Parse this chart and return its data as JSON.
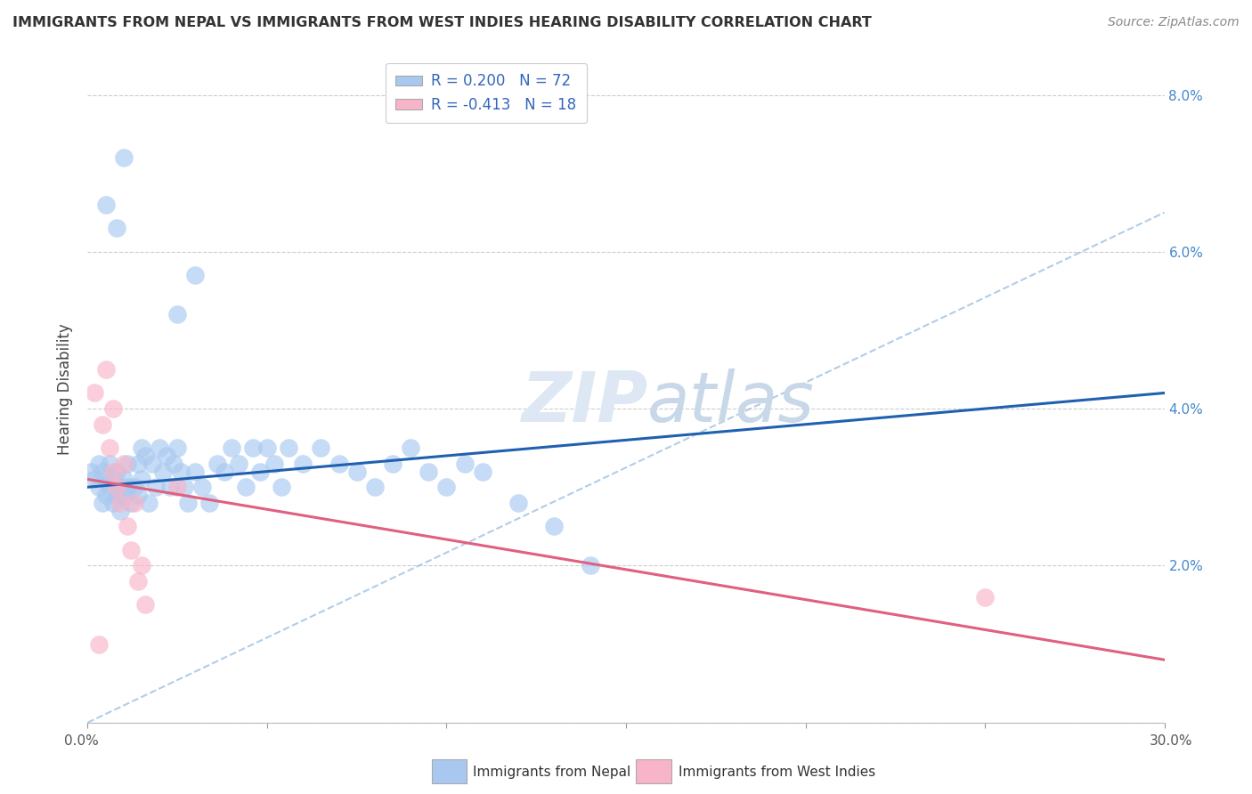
{
  "title": "IMMIGRANTS FROM NEPAL VS IMMIGRANTS FROM WEST INDIES HEARING DISABILITY CORRELATION CHART",
  "source": "Source: ZipAtlas.com",
  "ylabel": "Hearing Disability",
  "xlim": [
    0.0,
    0.3
  ],
  "ylim": [
    0.0,
    0.085
  ],
  "xticks": [
    0.0,
    0.05,
    0.1,
    0.15,
    0.2,
    0.25,
    0.3
  ],
  "xtick_labels": [
    "0.0%",
    "",
    "",
    "",
    "",
    "",
    "30.0%"
  ],
  "yticks": [
    0.0,
    0.02,
    0.04,
    0.06,
    0.08
  ],
  "ytick_labels": [
    "",
    "2.0%",
    "4.0%",
    "6.0%",
    "8.0%"
  ],
  "legend_label1": "Immigrants from Nepal",
  "legend_label2": "Immigrants from West Indies",
  "r1": 0.2,
  "n1": 72,
  "r2": -0.413,
  "n2": 18,
  "color_nepal": "#a8c8f0",
  "color_westindies": "#f8b4c8",
  "line_color_nepal": "#2060b0",
  "line_color_westindies": "#e06080",
  "dashed_line_color": "#90b8e0",
  "watermark_color": "#dde8f4",
  "nepal_points": [
    [
      0.001,
      0.032
    ],
    [
      0.002,
      0.031
    ],
    [
      0.003,
      0.03
    ],
    [
      0.003,
      0.033
    ],
    [
      0.004,
      0.028
    ],
    [
      0.004,
      0.032
    ],
    [
      0.005,
      0.031
    ],
    [
      0.005,
      0.029
    ],
    [
      0.006,
      0.033
    ],
    [
      0.006,
      0.03
    ],
    [
      0.007,
      0.028
    ],
    [
      0.007,
      0.031
    ],
    [
      0.008,
      0.029
    ],
    [
      0.008,
      0.032
    ],
    [
      0.009,
      0.03
    ],
    [
      0.009,
      0.027
    ],
    [
      0.01,
      0.031
    ],
    [
      0.01,
      0.029
    ],
    [
      0.011,
      0.033
    ],
    [
      0.011,
      0.03
    ],
    [
      0.012,
      0.028
    ],
    [
      0.013,
      0.03
    ],
    [
      0.014,
      0.033
    ],
    [
      0.014,
      0.029
    ],
    [
      0.015,
      0.035
    ],
    [
      0.015,
      0.031
    ],
    [
      0.016,
      0.034
    ],
    [
      0.017,
      0.028
    ],
    [
      0.018,
      0.033
    ],
    [
      0.019,
      0.03
    ],
    [
      0.02,
      0.035
    ],
    [
      0.021,
      0.032
    ],
    [
      0.022,
      0.034
    ],
    [
      0.023,
      0.03
    ],
    [
      0.024,
      0.033
    ],
    [
      0.025,
      0.035
    ],
    [
      0.026,
      0.032
    ],
    [
      0.027,
      0.03
    ],
    [
      0.028,
      0.028
    ],
    [
      0.03,
      0.032
    ],
    [
      0.032,
      0.03
    ],
    [
      0.034,
      0.028
    ],
    [
      0.036,
      0.033
    ],
    [
      0.038,
      0.032
    ],
    [
      0.04,
      0.035
    ],
    [
      0.042,
      0.033
    ],
    [
      0.044,
      0.03
    ],
    [
      0.046,
      0.035
    ],
    [
      0.048,
      0.032
    ],
    [
      0.05,
      0.035
    ],
    [
      0.052,
      0.033
    ],
    [
      0.054,
      0.03
    ],
    [
      0.056,
      0.035
    ],
    [
      0.06,
      0.033
    ],
    [
      0.065,
      0.035
    ],
    [
      0.07,
      0.033
    ],
    [
      0.075,
      0.032
    ],
    [
      0.08,
      0.03
    ],
    [
      0.085,
      0.033
    ],
    [
      0.09,
      0.035
    ],
    [
      0.095,
      0.032
    ],
    [
      0.1,
      0.03
    ],
    [
      0.105,
      0.033
    ],
    [
      0.11,
      0.032
    ],
    [
      0.12,
      0.028
    ],
    [
      0.13,
      0.025
    ],
    [
      0.14,
      0.02
    ],
    [
      0.01,
      0.072
    ],
    [
      0.008,
      0.063
    ],
    [
      0.03,
      0.057
    ],
    [
      0.005,
      0.066
    ],
    [
      0.025,
      0.052
    ]
  ],
  "westindies_points": [
    [
      0.002,
      0.042
    ],
    [
      0.004,
      0.038
    ],
    [
      0.005,
      0.045
    ],
    [
      0.006,
      0.035
    ],
    [
      0.007,
      0.032
    ],
    [
      0.007,
      0.04
    ],
    [
      0.008,
      0.03
    ],
    [
      0.009,
      0.028
    ],
    [
      0.01,
      0.033
    ],
    [
      0.011,
      0.025
    ],
    [
      0.012,
      0.022
    ],
    [
      0.013,
      0.028
    ],
    [
      0.014,
      0.018
    ],
    [
      0.015,
      0.02
    ],
    [
      0.016,
      0.015
    ],
    [
      0.025,
      0.03
    ],
    [
      0.25,
      0.016
    ],
    [
      0.003,
      0.01
    ]
  ],
  "nepal_line": [
    0.0,
    0.03,
    0.3,
    0.042
  ],
  "westindies_line": [
    0.0,
    0.031,
    0.3,
    0.008
  ],
  "dashed_line": [
    0.0,
    0.0,
    0.3,
    0.065
  ]
}
